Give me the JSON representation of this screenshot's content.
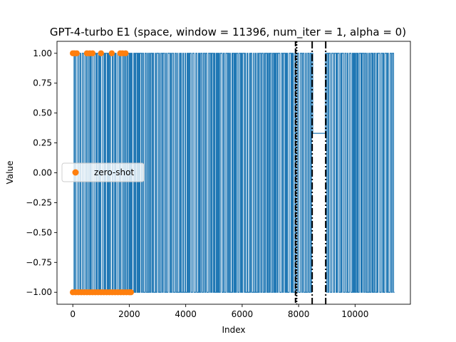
{
  "chart_data": {
    "type": "line",
    "title": "GPT-4-turbo E1 (space, window = 11396, num_iter = 1, alpha = 0)",
    "xlabel": "Index",
    "ylabel": "Value",
    "xlim": [
      -560,
      11960
    ],
    "ylim": [
      -1.1,
      1.1
    ],
    "grid": false,
    "legend_placement": "center-left",
    "x_ticks": [
      0,
      2000,
      4000,
      6000,
      8000,
      10000
    ],
    "y_ticks": [
      1.0,
      0.75,
      0.5,
      0.25,
      0.0,
      -0.25,
      -0.5,
      -0.75,
      -1.0
    ],
    "x_tick_labels": [
      "0",
      "2000",
      "4000",
      "6000",
      "8000",
      "10000"
    ],
    "y_tick_labels": [
      "1.00",
      "0.75",
      "0.50",
      "0.25",
      "0.00",
      "−0.25",
      "−0.50",
      "−0.75",
      "−1.00"
    ],
    "series": [
      {
        "kind": "line",
        "color": "#1f77b4",
        "description_values": "binary signal alternating between -1 and 1 from index 0 to 11396, with a flat segment at about 0.33 from about 8500 to 8950",
        "x_range": [
          0,
          11396
        ],
        "levels": [
          -1,
          1
        ],
        "flat_segment": {
          "x": [
            8500,
            8950
          ],
          "y": 0.33
        }
      },
      {
        "kind": "scatter",
        "name": "zero-shot",
        "color": "#ff7f0e",
        "points": [
          {
            "x": 0,
            "y": 1
          },
          {
            "x": 60,
            "y": 1
          },
          {
            "x": 140,
            "y": 1
          },
          {
            "x": 500,
            "y": 1
          },
          {
            "x": 600,
            "y": 1
          },
          {
            "x": 700,
            "y": 1
          },
          {
            "x": 1000,
            "y": 1
          },
          {
            "x": 1380,
            "y": 1
          },
          {
            "x": 1680,
            "y": 1
          },
          {
            "x": 1760,
            "y": 1
          },
          {
            "x": 1870,
            "y": 1
          },
          {
            "x": 0,
            "y": -1
          },
          {
            "x": 100,
            "y": -1
          },
          {
            "x": 200,
            "y": -1
          },
          {
            "x": 300,
            "y": -1
          },
          {
            "x": 400,
            "y": -1
          },
          {
            "x": 500,
            "y": -1
          },
          {
            "x": 600,
            "y": -1
          },
          {
            "x": 700,
            "y": -1
          },
          {
            "x": 800,
            "y": -1
          },
          {
            "x": 900,
            "y": -1
          },
          {
            "x": 1000,
            "y": -1
          },
          {
            "x": 1100,
            "y": -1
          },
          {
            "x": 1200,
            "y": -1
          },
          {
            "x": 1300,
            "y": -1
          },
          {
            "x": 1400,
            "y": -1
          },
          {
            "x": 1500,
            "y": -1
          },
          {
            "x": 1600,
            "y": -1
          },
          {
            "x": 1700,
            "y": -1
          },
          {
            "x": 1800,
            "y": -1
          },
          {
            "x": 1900,
            "y": -1
          },
          {
            "x": 2000,
            "y": -1
          },
          {
            "x": 2060,
            "y": -1
          }
        ]
      }
    ],
    "vertical_lines": [
      {
        "x": 7890,
        "style": "dashed",
        "color": "#000000"
      },
      {
        "x": 7930,
        "style": "dotted",
        "color": "#000000"
      },
      {
        "x": 8480,
        "style": "dashdot",
        "color": "#000000"
      },
      {
        "x": 8960,
        "style": "dashdot",
        "color": "#000000"
      }
    ],
    "legend": [
      {
        "label": "zero-shot",
        "marker": "circle",
        "color": "#ff7f0e"
      }
    ]
  }
}
